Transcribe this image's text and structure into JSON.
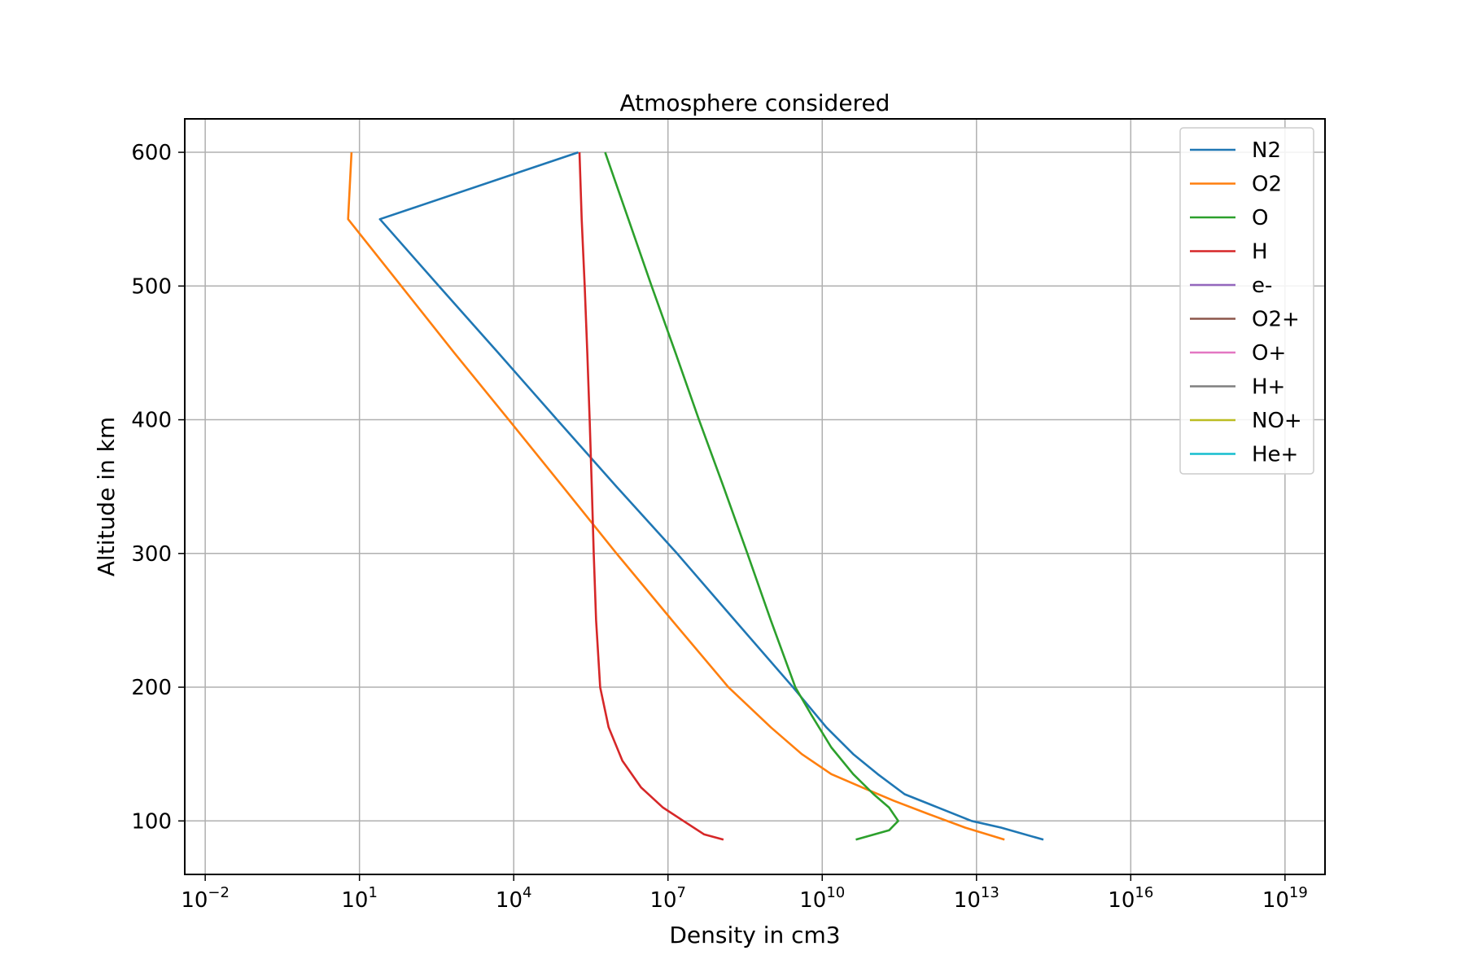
{
  "chart_data": {
    "type": "line",
    "title": "Atmosphere considered",
    "xlabel": "Density in cm3",
    "ylabel": "Altitude in km",
    "xscale": "log",
    "xlim": [
      0.004,
      60000000000000000000
    ],
    "ylim": [
      60,
      625
    ],
    "grid": true,
    "legend_position": "top-right",
    "x_ticks": [
      {
        "base": "10",
        "exp": "−2",
        "value": 0.01
      },
      {
        "base": "10",
        "exp": "1",
        "value": 10
      },
      {
        "base": "10",
        "exp": "4",
        "value": 10000
      },
      {
        "base": "10",
        "exp": "7",
        "value": 10000000
      },
      {
        "base": "10",
        "exp": "10",
        "value": 10000000000
      },
      {
        "base": "10",
        "exp": "13",
        "value": 10000000000000
      },
      {
        "base": "10",
        "exp": "16",
        "value": 10000000000000000
      },
      {
        "base": "10",
        "exp": "19",
        "value": 10000000000000000000
      }
    ],
    "y_ticks": [
      {
        "label": "100",
        "value": 100
      },
      {
        "label": "200",
        "value": 200
      },
      {
        "label": "300",
        "value": 300
      },
      {
        "label": "400",
        "value": 400
      },
      {
        "label": "500",
        "value": 500
      },
      {
        "label": "600",
        "value": 600
      }
    ],
    "series": [
      {
        "name": "N2",
        "color": "#1f77b4",
        "points": [
          {
            "x": 200000000000000.0,
            "y": 86
          },
          {
            "x": 30000000000000.0,
            "y": 95
          },
          {
            "x": 8000000000000.0,
            "y": 100
          },
          {
            "x": 1800000000000.0,
            "y": 110
          },
          {
            "x": 400000000000.0,
            "y": 120
          },
          {
            "x": 120000000000.0,
            "y": 135
          },
          {
            "x": 40000000000.0,
            "y": 150
          },
          {
            "x": 12000000000.0,
            "y": 170
          },
          {
            "x": 2700000000.0,
            "y": 200
          },
          {
            "x": 200000000.0,
            "y": 250
          },
          {
            "x": 15000000.0,
            "y": 300
          },
          {
            "x": 1000000.0,
            "y": 350
          },
          {
            "x": 70000.0,
            "y": 400
          },
          {
            "x": 5000.0,
            "y": 450
          },
          {
            "x": 350,
            "y": 500
          },
          {
            "x": 25,
            "y": 550
          },
          {
            "x": 180000.0,
            "y": 600
          }
        ]
      },
      {
        "name": "O2",
        "color": "#ff7f0e",
        "points": [
          {
            "x": 35000000000000.0,
            "y": 86
          },
          {
            "x": 6000000000000.0,
            "y": 95
          },
          {
            "x": 1200000000000.0,
            "y": 105
          },
          {
            "x": 250000000000.0,
            "y": 115
          },
          {
            "x": 60000000000.0,
            "y": 125
          },
          {
            "x": 15000000000.0,
            "y": 135
          },
          {
            "x": 4000000000.0,
            "y": 150
          },
          {
            "x": 1000000000.0,
            "y": 170
          },
          {
            "x": 150000000.0,
            "y": 200
          },
          {
            "x": 12000000.0,
            "y": 250
          },
          {
            "x": 1000000.0,
            "y": 300
          },
          {
            "x": 90000.0,
            "y": 350
          },
          {
            "x": 8000.0,
            "y": 400
          },
          {
            "x": 700,
            "y": 450
          },
          {
            "x": 65,
            "y": 500
          },
          {
            "x": 6,
            "y": 550
          },
          {
            "x": 7,
            "y": 600
          }
        ]
      },
      {
        "name": "O",
        "color": "#2ca02c",
        "points": [
          {
            "x": 45000000000.0,
            "y": 86
          },
          {
            "x": 200000000000.0,
            "y": 93
          },
          {
            "x": 300000000000.0,
            "y": 100
          },
          {
            "x": 200000000000.0,
            "y": 110
          },
          {
            "x": 100000000000.0,
            "y": 120
          },
          {
            "x": 40000000000.0,
            "y": 135
          },
          {
            "x": 15000000000.0,
            "y": 155
          },
          {
            "x": 6000000000.0,
            "y": 180
          },
          {
            "x": 3000000000.0,
            "y": 200
          },
          {
            "x": 1000000000.0,
            "y": 250
          },
          {
            "x": 350000000.0,
            "y": 300
          },
          {
            "x": 120000000.0,
            "y": 350
          },
          {
            "x": 40000000.0,
            "y": 400
          },
          {
            "x": 14000000.0,
            "y": 450
          },
          {
            "x": 4800000.0,
            "y": 500
          },
          {
            "x": 1700000.0,
            "y": 550
          },
          {
            "x": 600000.0,
            "y": 600
          }
        ]
      },
      {
        "name": "H",
        "color": "#d62728",
        "points": [
          {
            "x": 120000000.0,
            "y": 86
          },
          {
            "x": 50000000.0,
            "y": 90
          },
          {
            "x": 20000000.0,
            "y": 100
          },
          {
            "x": 8000000.0,
            "y": 110
          },
          {
            "x": 3000000.0,
            "y": 125
          },
          {
            "x": 1300000.0,
            "y": 145
          },
          {
            "x": 700000.0,
            "y": 170
          },
          {
            "x": 480000.0,
            "y": 200
          },
          {
            "x": 400000.0,
            "y": 250
          },
          {
            "x": 360000.0,
            "y": 300
          },
          {
            "x": 330000.0,
            "y": 350
          },
          {
            "x": 300000.0,
            "y": 400
          },
          {
            "x": 270000.0,
            "y": 450
          },
          {
            "x": 240000.0,
            "y": 500
          },
          {
            "x": 210000.0,
            "y": 550
          },
          {
            "x": 190000.0,
            "y": 600
          }
        ]
      },
      {
        "name": "e-",
        "color": "#9467bd",
        "points": []
      },
      {
        "name": "O2+",
        "color": "#8c564b",
        "points": []
      },
      {
        "name": "O+",
        "color": "#e377c2",
        "points": []
      },
      {
        "name": "H+",
        "color": "#7f7f7f",
        "points": []
      },
      {
        "name": "NO+",
        "color": "#bcbd22",
        "points": []
      },
      {
        "name": "He+",
        "color": "#17becf",
        "points": []
      }
    ]
  }
}
